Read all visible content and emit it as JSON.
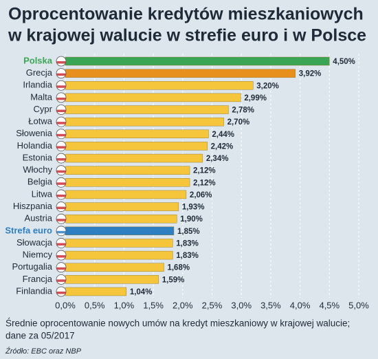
{
  "chart_data": {
    "type": "bar",
    "orientation": "horizontal",
    "title": "Oprocentowanie kredytów mieszkaniowych",
    "subtitle": "w krajowej walucie w strefie euro i w Polsce",
    "categories": [
      "Polska",
      "Grecja",
      "Irlandia",
      "Malta",
      "Cypr",
      "Łotwa",
      "Słowenia",
      "Holandia",
      "Estonia",
      "Włochy",
      "Belgia",
      "Litwa",
      "Hiszpania",
      "Austria",
      "Strefa euro",
      "Słowacja",
      "Niemcy",
      "Portugalia",
      "Francja",
      "Finlandia"
    ],
    "values": [
      4.5,
      3.92,
      3.2,
      2.99,
      2.78,
      2.7,
      2.44,
      2.42,
      2.34,
      2.12,
      2.12,
      2.06,
      1.93,
      1.9,
      1.85,
      1.83,
      1.83,
      1.68,
      1.59,
      1.04
    ],
    "value_labels": [
      "4,50%",
      "3,92%",
      "3,20%",
      "2,99%",
      "2,78%",
      "2,70%",
      "2,44%",
      "2,42%",
      "2,34%",
      "2,12%",
      "2,12%",
      "2,06%",
      "1,93%",
      "1,90%",
      "1,85%",
      "1,83%",
      "1,83%",
      "1,68%",
      "1,59%",
      "1,04%"
    ],
    "colors": [
      "#3aa655",
      "#e8901e",
      "#f5c53c",
      "#f5c53c",
      "#f5c53c",
      "#f5c53c",
      "#f5c53c",
      "#f5c53c",
      "#f5c53c",
      "#f5c53c",
      "#f5c53c",
      "#f5c53c",
      "#f5c53c",
      "#f5c53c",
      "#2e7fc1",
      "#f5c53c",
      "#f5c53c",
      "#f5c53c",
      "#f5c53c",
      "#f5c53c"
    ],
    "highlight": [
      0,
      14
    ],
    "xlim": [
      0,
      5
    ],
    "xticks": [
      {
        "value": 0,
        "label": "0,0%"
      },
      {
        "value": 0.5,
        "label": "0,5%"
      },
      {
        "value": 1,
        "label": "1,0%"
      },
      {
        "value": 1.5,
        "label": "1,5%"
      },
      {
        "value": 2,
        "label": "2,0%"
      },
      {
        "value": 2.5,
        "label": "2,5%"
      },
      {
        "value": 3,
        "label": "3,0%"
      },
      {
        "value": 3.5,
        "label": "3,5%"
      },
      {
        "value": 4,
        "label": "4,0%"
      },
      {
        "value": 4.5,
        "label": "4,5%"
      },
      {
        "value": 5,
        "label": "5,0%"
      }
    ],
    "grid": true,
    "note": "Średnie oprocentowanie nowych umów na kredyt mieszkaniowy w krajowej walucie;",
    "note2": "dane za 05/2017",
    "source": "Źródło: EBC oraz NBP"
  }
}
